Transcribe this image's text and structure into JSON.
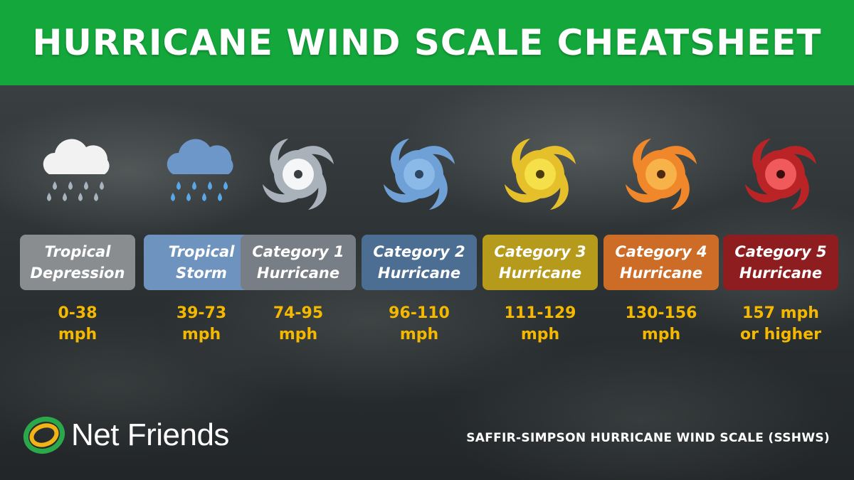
{
  "title": "HURRICANE WIND SCALE CHEATSHEET",
  "categories": [
    {
      "line1": "Tropical",
      "line2": "Depression",
      "speed1": "0-38",
      "speed2": "mph",
      "icon": "rain-cloud-icon",
      "bg": "#8a8d8f",
      "icon_color": "#f2f2f2"
    },
    {
      "line1": "Tropical",
      "line2": "Storm",
      "speed1": "39-73",
      "speed2": "mph",
      "icon": "rain-cloud-icon",
      "bg": "#6f93bf",
      "icon_color": "#6d97c8"
    },
    {
      "line1": "Category 1",
      "line2": "Hurricane",
      "speed1": "74-95",
      "speed2": "mph",
      "icon": "hurricane-icon",
      "bg": "#787e85",
      "icon_color": "#a9b1bb"
    },
    {
      "line1": "Category 2",
      "line2": "Hurricane",
      "speed1": "96-110",
      "speed2": "mph",
      "icon": "hurricane-icon",
      "bg": "#4d6e93",
      "icon_color": "#6fa0d6"
    },
    {
      "line1": "Category 3",
      "line2": "Hurricane",
      "speed1": "111-129",
      "speed2": "mph",
      "icon": "hurricane-icon",
      "bg": "#b59a1c",
      "icon_color": "#e6c02a"
    },
    {
      "line1": "Category 4",
      "line2": "Hurricane",
      "speed1": "130-156",
      "speed2": "mph",
      "icon": "hurricane-icon",
      "bg": "#cc6c26",
      "icon_color": "#f0872a"
    },
    {
      "line1": "Category 5",
      "line2": "Hurricane",
      "speed1": "157 mph",
      "speed2": "or higher",
      "icon": "hurricane-icon",
      "bg": "#8e1d1f",
      "icon_color": "#bb2427"
    }
  ],
  "logo": {
    "text": "Net Friends",
    "icon": "net-friends-logo-icon"
  },
  "source": "SAFFIR-SIMPSON HURRICANE WIND SCALE (SSHWS)",
  "colors": {
    "header": "#14a83c",
    "speed_text": "#f5b800"
  }
}
